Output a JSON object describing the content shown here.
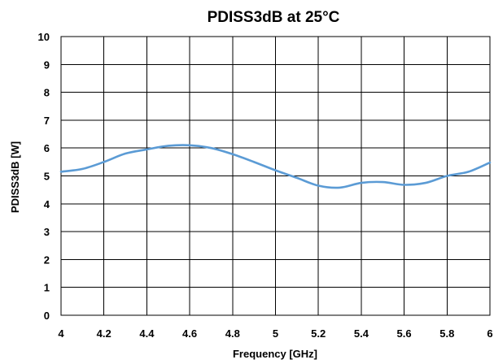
{
  "chart_data": {
    "type": "line",
    "title": "PDISS3dB at 25°C",
    "xlabel": "Frequency [GHz]",
    "ylabel": "PDISS3dB [W]",
    "xlim": [
      4,
      6
    ],
    "ylim": [
      0,
      10
    ],
    "xticks": [
      "4",
      "4.2",
      "4.4",
      "4.6",
      "4.8",
      "5",
      "5.2",
      "5.4",
      "5.6",
      "5.8",
      "6"
    ],
    "yticks": [
      "0",
      "1",
      "2",
      "3",
      "4",
      "5",
      "6",
      "7",
      "8",
      "9",
      "10"
    ],
    "grid": true,
    "series": [
      {
        "color": "#5b9bd5",
        "x": [
          4.0,
          4.1,
          4.2,
          4.3,
          4.4,
          4.5,
          4.6,
          4.7,
          4.8,
          4.9,
          5.0,
          5.1,
          5.2,
          5.3,
          5.4,
          5.5,
          5.6,
          5.7,
          5.8,
          5.9,
          6.0
        ],
        "y": [
          5.15,
          5.25,
          5.5,
          5.8,
          5.95,
          6.08,
          6.1,
          6.0,
          5.78,
          5.5,
          5.2,
          4.93,
          4.65,
          4.58,
          4.75,
          4.78,
          4.68,
          4.75,
          5.0,
          5.15,
          5.48
        ]
      }
    ]
  }
}
